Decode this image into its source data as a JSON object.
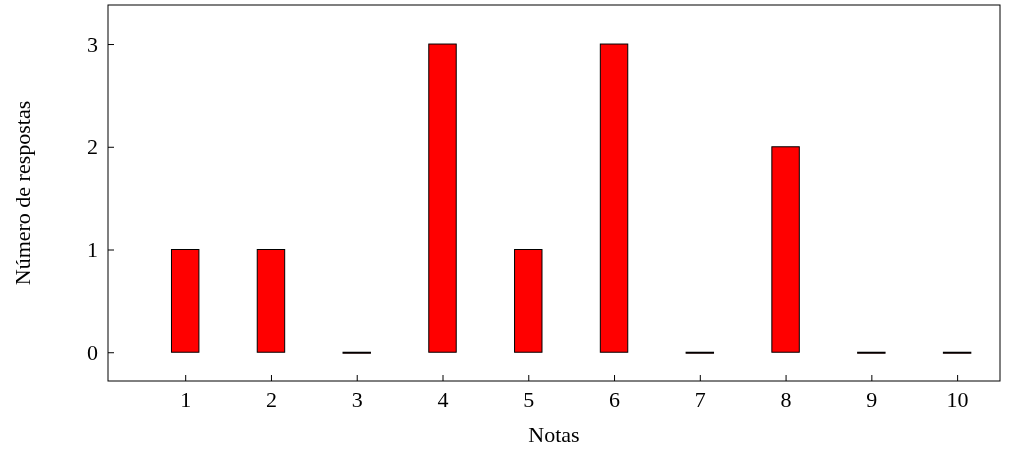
{
  "chart_data": {
    "type": "bar",
    "xlabel": "Notas",
    "ylabel": "Número de respostas",
    "x": [
      1,
      2,
      3,
      4,
      5,
      6,
      7,
      8,
      9,
      10
    ],
    "values": [
      1,
      1,
      0,
      3,
      1,
      3,
      0,
      2,
      0,
      0
    ],
    "color": "#ff0000",
    "xlim": [
      0.1,
      10.5
    ],
    "xticks": [
      1,
      2,
      3,
      4,
      5,
      6,
      7,
      8,
      9,
      10
    ],
    "ylim": [
      -0.28,
      3.38
    ],
    "yticks": [
      0,
      1,
      2,
      3
    ],
    "grid": false
  }
}
